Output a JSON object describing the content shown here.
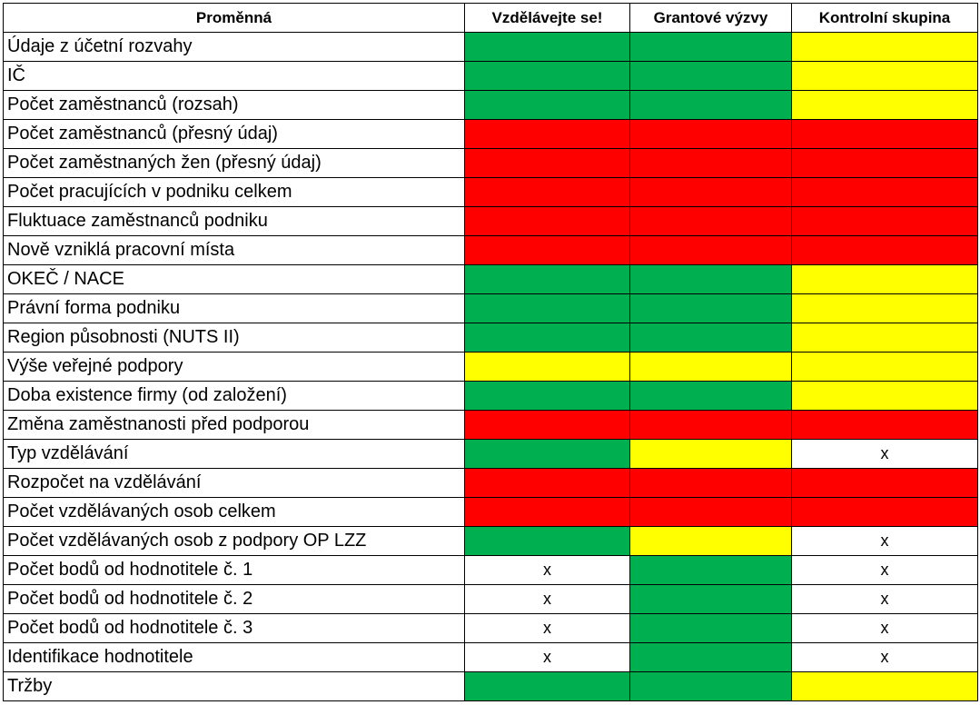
{
  "headers": [
    "Proměnná",
    "Vzdělávejte se!",
    "Grantové výzvy",
    "Kontrolní skupina"
  ],
  "colors": {
    "green": "#00b050",
    "red": "#ff0000",
    "yellow": "#ffff00",
    "x": "#ffffff"
  },
  "rows": [
    {
      "label": "Údaje z účetní rozvahy",
      "cells": [
        "green",
        "green",
        "yellow"
      ]
    },
    {
      "label": "IČ",
      "cells": [
        "green",
        "green",
        "yellow"
      ]
    },
    {
      "label": "Počet zaměstnanců (rozsah)",
      "cells": [
        "green",
        "green",
        "yellow"
      ]
    },
    {
      "label": "Počet zaměstnanců (přesný údaj)",
      "cells": [
        "red",
        "red",
        "red"
      ]
    },
    {
      "label": "Počet zaměstnaných žen (přesný údaj)",
      "cells": [
        "red",
        "red",
        "red"
      ]
    },
    {
      "label": "Počet pracujících v podniku celkem",
      "cells": [
        "red",
        "red",
        "red"
      ]
    },
    {
      "label": "Fluktuace zaměstnanců podniku",
      "cells": [
        "red",
        "red",
        "red"
      ]
    },
    {
      "label": "Nově vzniklá pracovní místa",
      "cells": [
        "red",
        "red",
        "red"
      ]
    },
    {
      "label": "OKEČ / NACE",
      "cells": [
        "green",
        "green",
        "yellow"
      ]
    },
    {
      "label": "Právní forma podniku",
      "cells": [
        "green",
        "green",
        "yellow"
      ]
    },
    {
      "label": "Region působnosti (NUTS II)",
      "cells": [
        "green",
        "green",
        "yellow"
      ]
    },
    {
      "label": "Výše veřejné podpory",
      "cells": [
        "yellow",
        "yellow",
        "yellow"
      ]
    },
    {
      "label": "Doba existence firmy (od založení)",
      "cells": [
        "green",
        "green",
        "yellow"
      ]
    },
    {
      "label": "Změna zaměstnanosti před podporou",
      "cells": [
        "red",
        "red",
        "red"
      ]
    },
    {
      "label": "Typ vzdělávání",
      "cells": [
        "green",
        "yellow",
        "x"
      ]
    },
    {
      "label": "Rozpočet na vzdělávání",
      "cells": [
        "red",
        "red",
        "red"
      ]
    },
    {
      "label": "Počet vzdělávaných osob celkem",
      "cells": [
        "red",
        "red",
        "red"
      ]
    },
    {
      "label": "Počet vzdělávaných osob z podpory OP LZZ",
      "cells": [
        "green",
        "yellow",
        "x"
      ]
    },
    {
      "label": "Počet bodů od hodnotitele č. 1",
      "cells": [
        "x",
        "green",
        "x"
      ]
    },
    {
      "label": "Počet bodů od hodnotitele č. 2",
      "cells": [
        "x",
        "green",
        "x"
      ]
    },
    {
      "label": "Počet bodů od hodnotitele č. 3",
      "cells": [
        "x",
        "green",
        "x"
      ]
    },
    {
      "label": "Identifikace hodnotitele",
      "cells": [
        "x",
        "green",
        "x"
      ]
    },
    {
      "label": "Tržby",
      "cells": [
        "green",
        "green",
        "yellow"
      ]
    }
  ],
  "x_mark": "x"
}
